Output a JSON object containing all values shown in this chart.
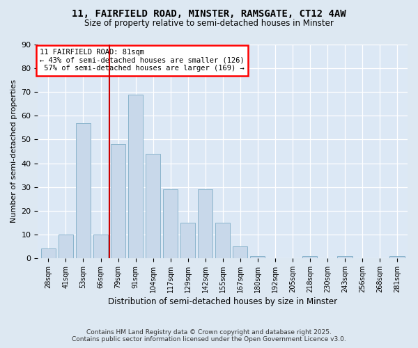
{
  "title1": "11, FAIRFIELD ROAD, MINSTER, RAMSGATE, CT12 4AW",
  "title2": "Size of property relative to semi-detached houses in Minster",
  "xlabel": "Distribution of semi-detached houses by size in Minster",
  "ylabel": "Number of semi-detached properties",
  "categories": [
    "28sqm",
    "41sqm",
    "53sqm",
    "66sqm",
    "79sqm",
    "91sqm",
    "104sqm",
    "117sqm",
    "129sqm",
    "142sqm",
    "155sqm",
    "167sqm",
    "180sqm",
    "192sqm",
    "205sqm",
    "218sqm",
    "230sqm",
    "243sqm",
    "256sqm",
    "268sqm",
    "281sqm"
  ],
  "values": [
    4,
    10,
    57,
    10,
    48,
    69,
    44,
    29,
    15,
    29,
    15,
    5,
    1,
    0,
    0,
    1,
    0,
    1,
    0,
    0,
    1
  ],
  "bar_color": "#c8d8ea",
  "bar_edge_color": "#8ab4cc",
  "annotation_title": "11 FAIRFIELD ROAD: 81sqm",
  "annotation_line1": "← 43% of semi-detached houses are smaller (126)",
  "annotation_line2": " 57% of semi-detached houses are larger (169) →",
  "property_bin_index": 4,
  "ylim_max": 90,
  "background_color": "#dce8f5",
  "fig_bg_color": "#dde8f2",
  "grid_color": "#ffffff",
  "red_line_color": "#cc0000",
  "footer1": "Contains HM Land Registry data © Crown copyright and database right 2025.",
  "footer2": "Contains public sector information licensed under the Open Government Licence v3.0."
}
